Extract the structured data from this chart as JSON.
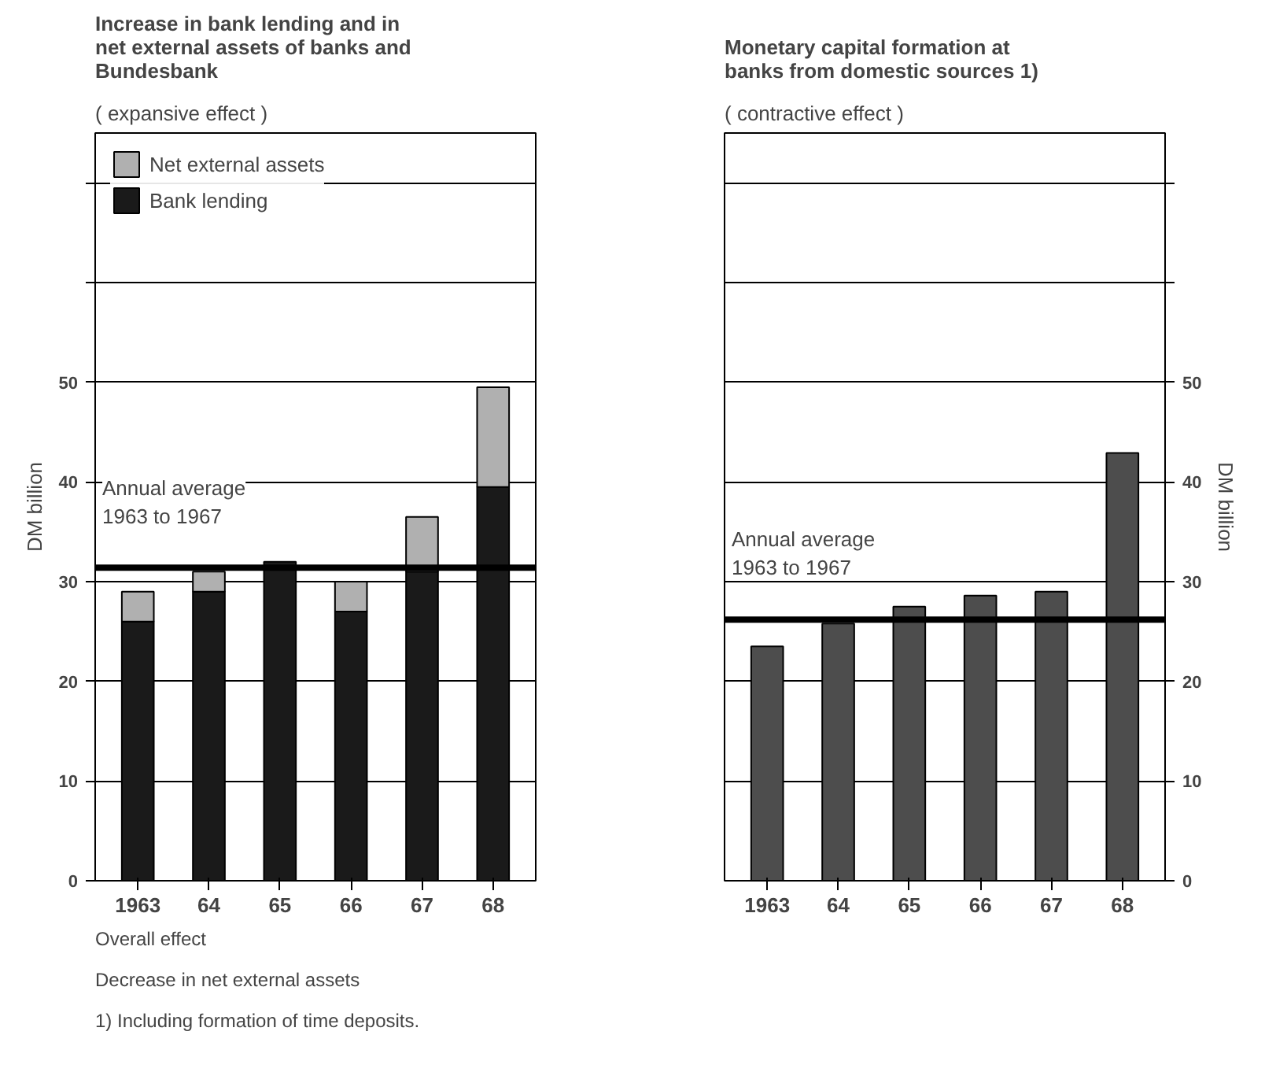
{
  "chart_data": [
    {
      "type": "bar",
      "title": "Increase in bank lending and in net external assets of banks and Bundesbank",
      "subtitle": "( expansive effect )",
      "ylabel": "DM billion",
      "categories": [
        "1963",
        "64",
        "65",
        "66",
        "67",
        "68"
      ],
      "stacked": true,
      "series": [
        {
          "name": "Bank lending",
          "color": "#1a1a1a",
          "values": [
            26,
            29,
            32,
            27,
            31,
            39.5
          ]
        },
        {
          "name": "Net external assets",
          "color": "#b0b0b0",
          "values": [
            3,
            2,
            null,
            3,
            5.5,
            10
          ]
        }
      ],
      "ylim": [
        0,
        75
      ],
      "yticks": [
        0,
        10,
        20,
        30,
        40,
        50,
        {
          "value": 60,
          "label": null
        },
        {
          "value": 70,
          "label": null
        }
      ],
      "grid": "y",
      "legend": "top left",
      "ref_lines": [
        {
          "axis": "y",
          "value": 31.4,
          "label": "Annual average 1963 to 1967",
          "color": "#000000"
        }
      ],
      "annotations": [
        "Overall effect",
        "Decrease in net external assets",
        "1) Including formation of time deposits."
      ]
    },
    {
      "type": "bar",
      "title": "Monetary capital formation at banks from domestic sources 1)",
      "subtitle": "( contractive effect )",
      "y2label": "DM billion",
      "categories": [
        "1963",
        "64",
        "65",
        "66",
        "67",
        "68"
      ],
      "series": [
        {
          "color": "#4d4d4d",
          "axis": "y2",
          "values": [
            23.5,
            25.8,
            27.5,
            28.6,
            29.0,
            42.9
          ]
        }
      ],
      "y2lim": [
        0,
        75
      ],
      "y2ticks": [
        0,
        10,
        20,
        30,
        40,
        50,
        {
          "value": 60,
          "label": null
        },
        {
          "value": 70,
          "label": null
        }
      ],
      "grid": "y",
      "ref_lines": [
        {
          "axis": "y2",
          "value": 26.2,
          "label": "Annual average 1963 to 1967",
          "color": "#000000"
        }
      ]
    }
  ]
}
